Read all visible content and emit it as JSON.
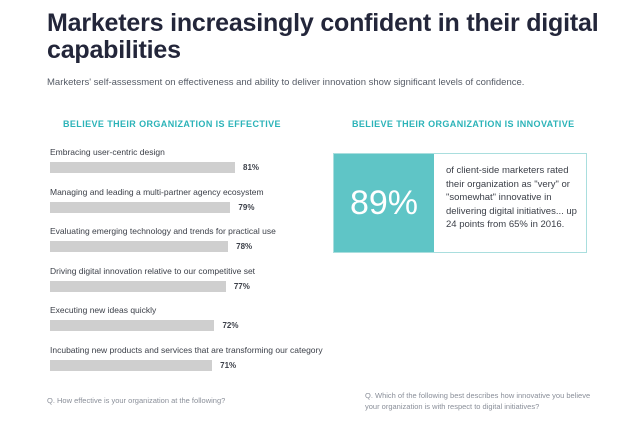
{
  "title": "Marketers increasingly confident in their digital capabilities",
  "subtitle": "Marketers' self-assessment on effectiveness and ability to deliver innovation show significant levels of confidence.",
  "colors": {
    "accent": "#2bb3b8",
    "stat_fill": "#5fc5c6",
    "bar": "#cfcfcf"
  },
  "chart_data": {
    "type": "bar",
    "orientation": "horizontal",
    "title": "BELIEVE THEIR ORGANIZATION IS EFFECTIVE",
    "categories": [
      "Embracing user-centric design",
      "Managing and leading a multi-partner agency ecosystem",
      "Evaluating emerging technology and trends for practical use",
      "Driving digital innovation relative to our competitive set",
      "Executing new ideas quickly",
      "Incubating new products and services that are transforming our category"
    ],
    "values": [
      81,
      79,
      78,
      77,
      72,
      71
    ],
    "value_labels": [
      "81%",
      "79%",
      "78%",
      "77%",
      "72%",
      "71%"
    ],
    "unit": "%",
    "xlim": [
      0,
      100
    ],
    "footnote": "Q. How effective is your organization at the following?"
  },
  "innovation": {
    "title": "BELIEVE THEIR ORGANIZATION IS INNOVATIVE",
    "stat": "89%",
    "description": "of client-side marketers rated their organization as \"very\" or \"somewhat\" innovative in delivering digital initiatives... up 24 points from 65% in 2016.",
    "footnote": "Q. Which of the following best describes how innovative you believe your organization is with respect to digital initiatives?"
  }
}
